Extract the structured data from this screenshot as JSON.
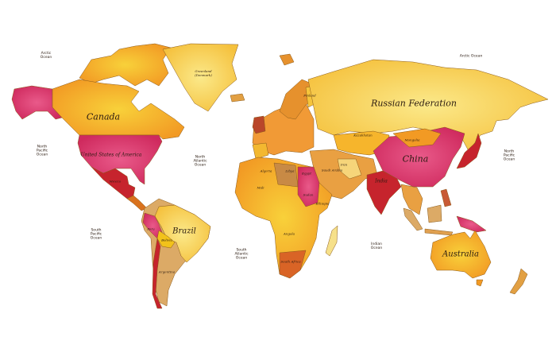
{
  "colors": {
    "yellow": "#f8d052",
    "orange": "#f3a227",
    "pink": "#d9336d",
    "red": "#c6242d",
    "brown": "#c88a45",
    "tan": "#dcaa66",
    "ocean": "#ffffff"
  },
  "labels": {
    "canada": "Canada",
    "usa": "United States of America",
    "greenland": "Greenland (Denmark)",
    "russia": "Russian Federation",
    "china": "China",
    "brazil": "Brazil",
    "australia": "Australia",
    "mongolia": "Mongolia",
    "kazakhstan": "Kazakhstan",
    "india": "India",
    "iran": "Iran",
    "egypt": "Egypt",
    "libya": "Libya",
    "algeria": "Algeria",
    "mali": "Mali",
    "sudan": "Sudan",
    "ethiopia": "Ethiopia",
    "angola": "Angola",
    "south_africa": "South Africa",
    "saudi_arabia": "Saudi Arabia",
    "finland": "Finland",
    "bolivia": "Bolivia",
    "peru": "Peru",
    "argentina": "Argentina",
    "mexico": "Mexico"
  },
  "oceans": {
    "arctic_left": "Arctic Ocean",
    "arctic_right": "Arctic Ocean",
    "north_pacific_left": "North Pacific Ocean",
    "north_pacific_right": "North Pacific Ocean",
    "north_atlantic": "North Atlantic Ocean",
    "south_pacific": "South Pacific Ocean",
    "south_atlantic": "South Atlantic Ocean",
    "indian": "Indian Ocean"
  }
}
